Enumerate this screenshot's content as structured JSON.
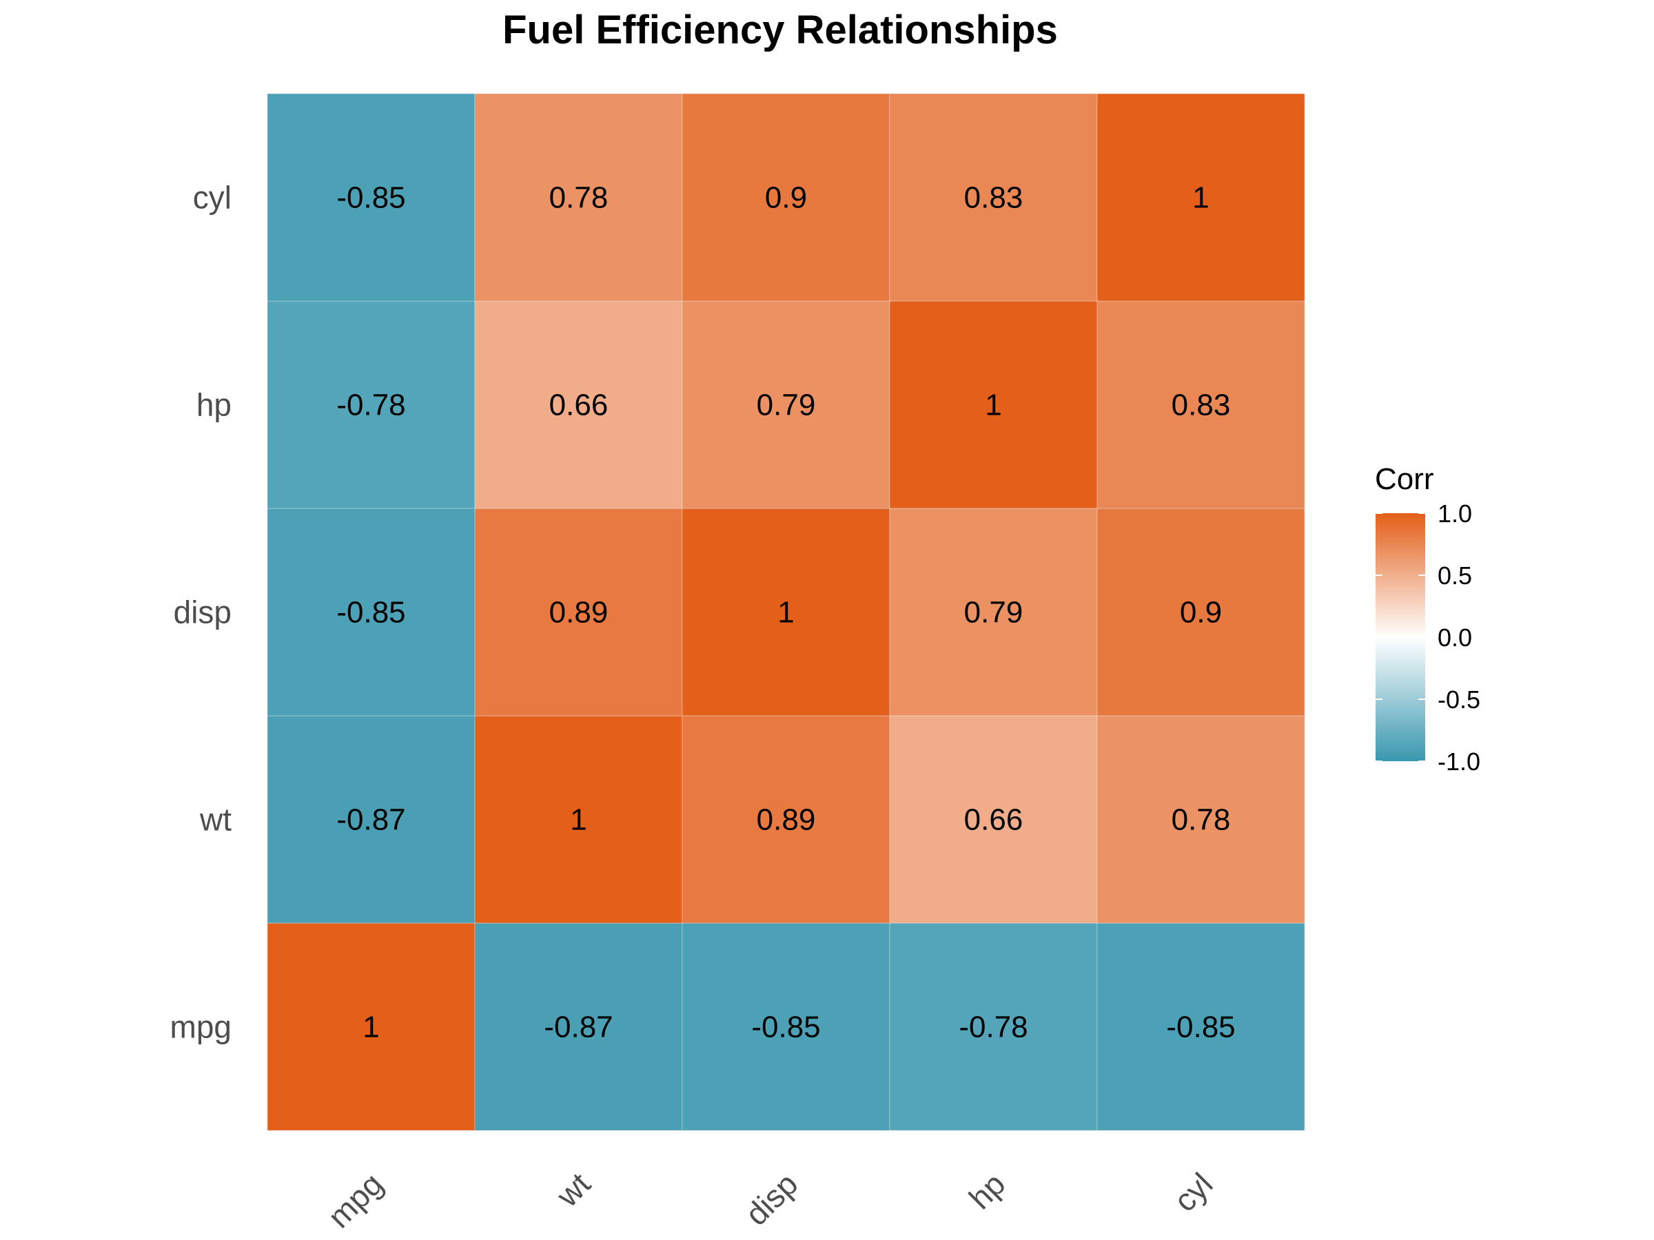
{
  "chart_data": {
    "type": "heatmap",
    "title": "Fuel Efficiency Relationships",
    "xlabel": "",
    "ylabel": "",
    "x_categories": [
      "mpg",
      "wt",
      "disp",
      "hp",
      "cyl"
    ],
    "y_categories": [
      "mpg",
      "wt",
      "disp",
      "hp",
      "cyl"
    ],
    "values": [
      [
        1,
        -0.87,
        -0.85,
        -0.78,
        -0.85
      ],
      [
        -0.87,
        1,
        0.89,
        0.66,
        0.78
      ],
      [
        -0.85,
        0.89,
        1,
        0.79,
        0.9
      ],
      [
        -0.78,
        0.66,
        0.79,
        1,
        0.83
      ],
      [
        -0.85,
        0.78,
        0.9,
        0.83,
        1
      ]
    ],
    "legend": {
      "title": "Corr",
      "position": "right",
      "limits": [
        -1.0,
        1.0
      ],
      "ticks": [
        "1.0",
        "0.5",
        "0.0",
        "-0.5",
        "-1.0"
      ]
    },
    "colors": {
      "low": "#3a97af",
      "mid": "#ffffff",
      "high": "#e35f1a"
    },
    "grid": false
  }
}
